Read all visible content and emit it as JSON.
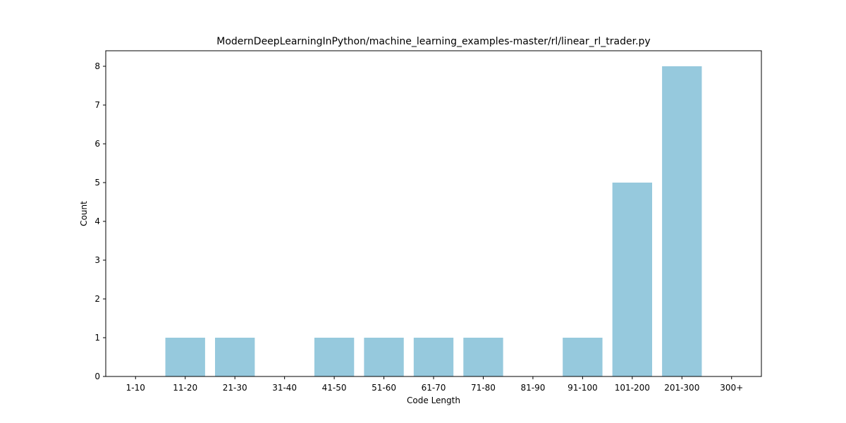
{
  "chart_data": {
    "type": "bar",
    "title": "ModernDeepLearningInPython/machine_learning_examples-master/rl/linear_rl_trader.py",
    "xlabel": "Code Length",
    "ylabel": "Count",
    "categories": [
      "1-10",
      "11-20",
      "21-30",
      "31-40",
      "41-50",
      "51-60",
      "61-70",
      "71-80",
      "81-90",
      "91-100",
      "101-200",
      "201-300",
      "300+"
    ],
    "values": [
      0,
      1,
      1,
      0,
      1,
      1,
      1,
      1,
      0,
      1,
      5,
      8,
      0
    ],
    "ylim": [
      0,
      8.4
    ],
    "yticks": [
      0,
      1,
      2,
      3,
      4,
      5,
      6,
      7,
      8
    ],
    "bar_color": "#96c9dd",
    "grid": false,
    "legend": "none"
  }
}
